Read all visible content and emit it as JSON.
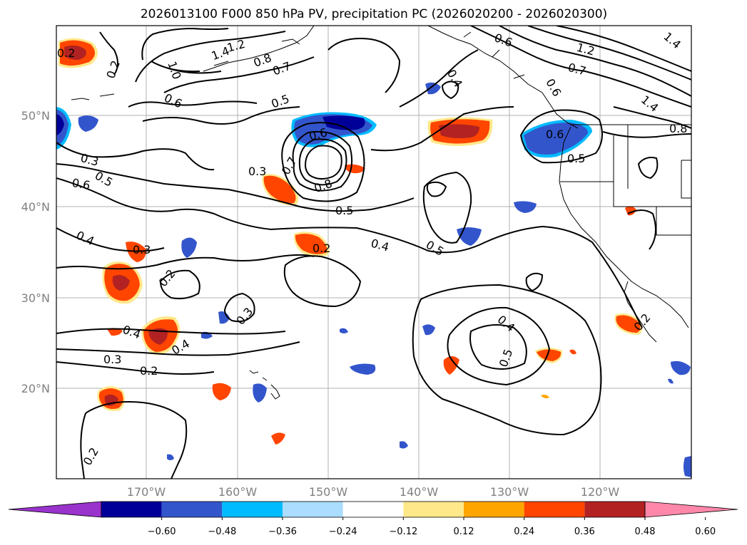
{
  "title": "2026013100 F000 850 hPa PV, precipitation PC (2026020200 - 2026020300)",
  "lat_labels": [
    "50°N",
    "40°N",
    "30°N",
    "20°N"
  ],
  "lon_labels": [
    "170°W",
    "160°W",
    "150°W",
    "140°W",
    "130°W",
    "120°W"
  ],
  "colorbar": {
    "ticks": [
      "−0.60",
      "−0.48",
      "−0.36",
      "−0.24",
      "−0.12",
      "0.12",
      "0.24",
      "0.36",
      "0.48",
      "0.60"
    ],
    "colors": [
      "#9933cc",
      "#000099",
      "#3355cc",
      "#00bbff",
      "#aaddff",
      "#ffffff",
      "#ffe88a",
      "#ffa500",
      "#ff4500",
      "#b22222",
      "#ff88aa"
    ]
  },
  "contour_labels": [
    {
      "id": "c1",
      "text": "0.2"
    },
    {
      "id": "c2",
      "text": "1.0"
    },
    {
      "id": "c3",
      "text": "0.6"
    },
    {
      "id": "c4",
      "text": "1.4"
    },
    {
      "id": "c5",
      "text": "1.2"
    },
    {
      "id": "c6",
      "text": "0.8"
    },
    {
      "id": "c7",
      "text": "0.7"
    },
    {
      "id": "c8",
      "text": "0.6"
    },
    {
      "id": "c9",
      "text": "0.5"
    },
    {
      "id": "c10",
      "text": "0.4"
    },
    {
      "id": "c11",
      "text": "0.6"
    },
    {
      "id": "c12",
      "text": "1.2"
    },
    {
      "id": "c13",
      "text": "0.7"
    },
    {
      "id": "c14",
      "text": "0.6"
    },
    {
      "id": "c15",
      "text": "1.4"
    },
    {
      "id": "c16",
      "text": "0.8"
    },
    {
      "id": "c17",
      "text": "0.5"
    },
    {
      "id": "c18",
      "text": "0.3"
    },
    {
      "id": "c19",
      "text": "0.6"
    },
    {
      "id": "c20",
      "text": "0.5"
    },
    {
      "id": "c21",
      "text": "0.3"
    },
    {
      "id": "c22",
      "text": "0.6"
    },
    {
      "id": "c23",
      "text": "0.7"
    },
    {
      "id": "c24",
      "text": "0.8"
    },
    {
      "id": "c25",
      "text": "0.5"
    },
    {
      "id": "c26",
      "text": "0.4"
    },
    {
      "id": "c27",
      "text": "0.3"
    },
    {
      "id": "c28",
      "text": "0.2"
    },
    {
      "id": "c29",
      "text": "0.2"
    },
    {
      "id": "c30",
      "text": "0.4"
    },
    {
      "id": "c31",
      "text": "0.5"
    },
    {
      "id": "c32",
      "text": "0.3"
    },
    {
      "id": "c33",
      "text": "0.4"
    },
    {
      "id": "c34",
      "text": "0.4"
    },
    {
      "id": "c35",
      "text": "0.3"
    },
    {
      "id": "c36",
      "text": "0.2"
    },
    {
      "id": "c37",
      "text": "0.4"
    },
    {
      "id": "c38",
      "text": "0.5"
    },
    {
      "id": "c39",
      "text": "0.2"
    },
    {
      "id": "c40",
      "text": "0.2"
    },
    {
      "id": "c41",
      "text": "1.4"
    },
    {
      "id": "c42",
      "text": "0.2"
    }
  ]
}
